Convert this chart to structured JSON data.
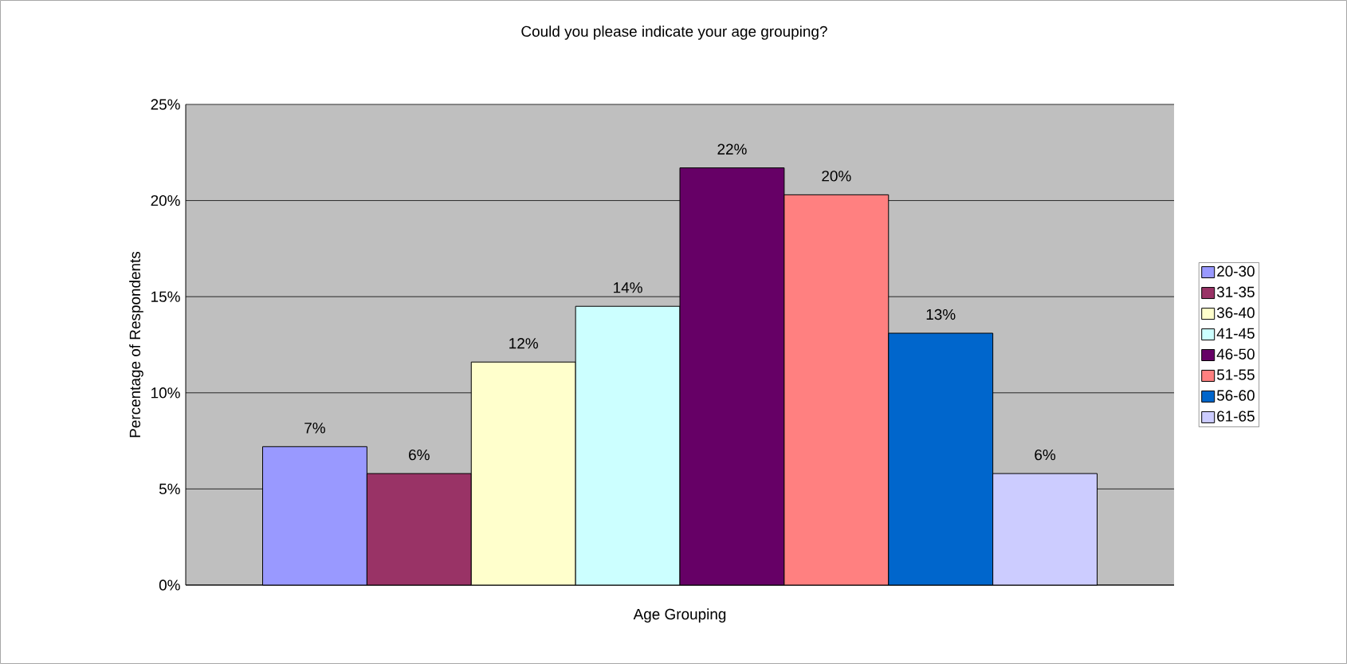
{
  "chart_data": {
    "type": "bar",
    "title": "Could you please indicate your age grouping?",
    "xlabel": "Age Grouping",
    "ylabel": "Percentage of Respondents",
    "categories": [
      null
    ],
    "series": [
      {
        "name": "20-30",
        "color": "#9999ff",
        "values": [
          7.2
        ],
        "value_labels": [
          "7%"
        ]
      },
      {
        "name": "31-35",
        "color": "#993366",
        "values": [
          5.8
        ],
        "value_labels": [
          "6%"
        ]
      },
      {
        "name": "36-40",
        "color": "#ffffcc",
        "values": [
          11.6
        ],
        "value_labels": [
          "12%"
        ]
      },
      {
        "name": "41-45",
        "color": "#ccffff",
        "values": [
          14.5
        ],
        "value_labels": [
          "14%"
        ]
      },
      {
        "name": "46-50",
        "color": "#660066",
        "values": [
          21.7
        ],
        "value_labels": [
          "22%"
        ]
      },
      {
        "name": "51-55",
        "color": "#ff8080",
        "values": [
          20.3
        ],
        "value_labels": [
          "20%"
        ]
      },
      {
        "name": "56-60",
        "color": "#0066cc",
        "values": [
          13.1
        ],
        "value_labels": [
          "13%"
        ]
      },
      {
        "name": "61-65",
        "color": "#ccccff",
        "values": [
          5.8
        ],
        "value_labels": [
          "6%"
        ]
      }
    ],
    "ylim": [
      0,
      25
    ],
    "yticks": [
      {
        "value": 0,
        "label": "0%"
      },
      {
        "value": 5,
        "label": "5%"
      },
      {
        "value": 10,
        "label": "10%"
      },
      {
        "value": 15,
        "label": "15%"
      },
      {
        "value": 20,
        "label": "20%"
      },
      {
        "value": 25,
        "label": "25%"
      }
    ],
    "grid": "y",
    "legend": "right"
  }
}
